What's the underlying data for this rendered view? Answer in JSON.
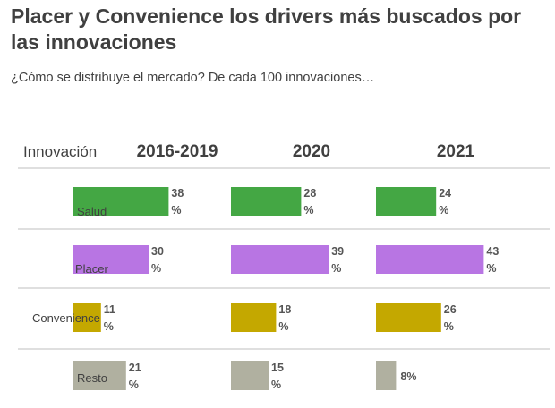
{
  "title": "Placer y Convenience los drivers más buscados por las innovaciones",
  "subtitle": "¿Cómo se distribuye el mercado? De cada 100 innovaciones…",
  "chart_data": {
    "type": "bar",
    "orientation": "horizontal",
    "row_header": "Innovación",
    "panels": [
      "2016-2019",
      "2020",
      "2021"
    ],
    "categories": [
      "Salud",
      "Placer",
      "Convenience",
      "Resto"
    ],
    "colors": [
      "#44a744",
      "#b875e3",
      "#c4a800",
      "#b0b0a0"
    ],
    "values": [
      [
        38,
        30,
        11,
        21
      ],
      [
        28,
        39,
        18,
        15
      ],
      [
        24,
        43,
        26,
        8
      ]
    ],
    "value_labels": [
      [
        [
          "38",
          "%"
        ],
        [
          "30",
          "%"
        ],
        [
          "11",
          "%"
        ],
        [
          "21",
          "%"
        ]
      ],
      [
        [
          "28",
          "%"
        ],
        [
          "39",
          "%"
        ],
        [
          "18",
          "%"
        ],
        [
          "15",
          "%"
        ]
      ],
      [
        [
          "24",
          "%"
        ],
        [
          "43",
          "%"
        ],
        [
          "26",
          "%"
        ],
        [
          "8%"
        ]
      ]
    ],
    "unit": "%",
    "grid": true,
    "legend": "none"
  }
}
